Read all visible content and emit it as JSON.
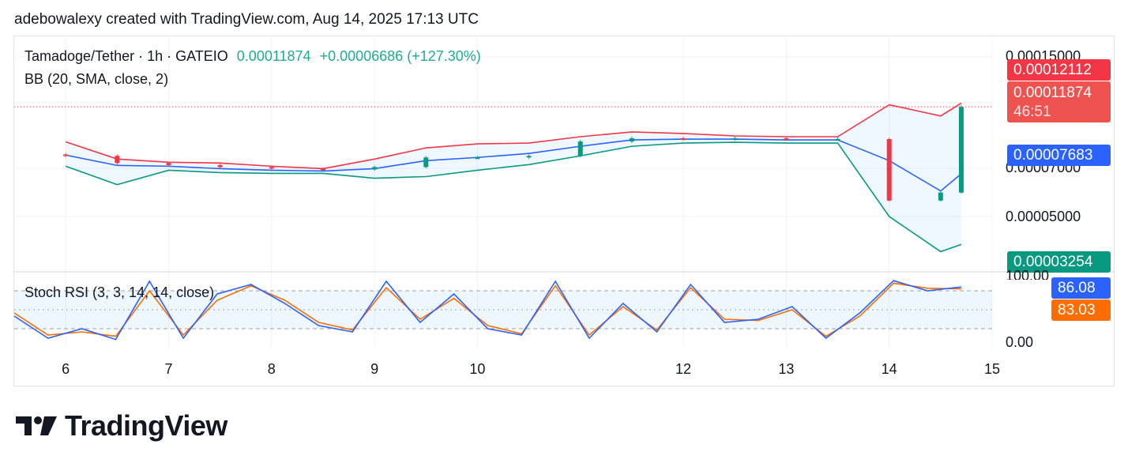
{
  "header": {
    "caption": "adebowalexy created with TradingView.com, Aug 14, 2025 17:13 UTC"
  },
  "legend": {
    "symbol": "Tamadoge/Tether · 1h · GATEIO",
    "last": "0.00011874",
    "change": "+0.00006686 (+127.30%)",
    "indicator": "BB (20, SMA, close, 2)",
    "stoch": "Stoch RSI (3, 3, 14, 14, close)"
  },
  "price_axis": {
    "ticks": [
      "0.00015000",
      "0.00007000",
      "0.00005000"
    ],
    "labels": [
      {
        "text": "0.00012112",
        "color": "#f23645"
      },
      {
        "text": "0.00011874",
        "sub": "46:51",
        "color": "#ef5350"
      },
      {
        "text": "0.00007683",
        "color": "#2962ff"
      },
      {
        "text": "0.00003254",
        "color": "#089981"
      }
    ]
  },
  "stoch_axis": {
    "ticks": [
      "100.00",
      "0.00"
    ],
    "labels": [
      {
        "text": "86.08",
        "color": "#2962ff"
      },
      {
        "text": "83.03",
        "color": "#ff6d00"
      }
    ]
  },
  "time_axis": {
    "ticks": [
      "6",
      "7",
      "8",
      "9",
      "10",
      "12",
      "13",
      "14",
      "15"
    ]
  },
  "chart_data": {
    "type": "line",
    "title": "Tamadoge/Tether · 1h · GATEIO",
    "x": [
      "6",
      "6.5",
      "7",
      "7.5",
      "8",
      "8.5",
      "9",
      "9.5",
      "10",
      "10.5",
      "11",
      "11.5",
      "12",
      "12.5",
      "13",
      "13.5",
      "14",
      "14.5",
      "14.7"
    ],
    "series": [
      {
        "name": "BB upper",
        "color": "#f23645",
        "values": [
          9.68e-05,
          8.6e-05,
          8.4e-05,
          8.35e-05,
          8.15e-05,
          8e-05,
          8.6e-05,
          9.3e-05,
          9.55e-05,
          9.6e-05,
          0.0001,
          0.000103,
          0.000102,
          0.0001005,
          0.0001,
          0.0001,
          0.00012,
          0.000113,
          0.000121
        ]
      },
      {
        "name": "BB basis",
        "color": "#2962ff",
        "values": [
          8.85e-05,
          8.2e-05,
          8.15e-05,
          8e-05,
          7.9e-05,
          7.85e-05,
          8e-05,
          8.5e-05,
          8.7e-05,
          8.95e-05,
          9.4e-05,
          9.8e-05,
          9.85e-05,
          9.85e-05,
          9.8e-05,
          9.8e-05,
          8.5e-05,
          6.6e-05,
          7.68e-05
        ]
      },
      {
        "name": "BB lower",
        "color": "#089981",
        "values": [
          8.15e-05,
          7e-05,
          7.9e-05,
          7.75e-05,
          7.7e-05,
          7.7e-05,
          7.4e-05,
          7.5e-05,
          7.9e-05,
          8.25e-05,
          8.8e-05,
          9.4e-05,
          9.6e-05,
          9.65e-05,
          9.6e-05,
          9.6e-05,
          5e-05,
          2.8e-05,
          3.25e-05
        ]
      }
    ],
    "candles_close": [
      8.8e-05,
      8.35e-05,
      8.22e-05,
      8.1e-05,
      8e-05,
      7.95e-05,
      8.1e-05,
      8.7e-05,
      8.7e-05,
      8.8e-05,
      9.7e-05,
      9.9e-05,
      9.85e-05,
      9.9e-05,
      9.85e-05,
      9.85e-05,
      6e-05,
      6.5e-05,
      0.0001187
    ],
    "stoch_rsi": {
      "k": [
        40,
        5,
        20,
        3,
        95,
        5,
        75,
        90,
        60,
        25,
        15,
        95,
        30,
        75,
        20,
        10,
        95,
        5,
        60,
        15,
        90,
        30,
        35,
        55,
        5,
        45,
        96,
        80,
        86
      ],
      "d": [
        45,
        10,
        15,
        8,
        80,
        10,
        65,
        88,
        65,
        30,
        18,
        85,
        35,
        68,
        25,
        12,
        88,
        10,
        55,
        18,
        85,
        35,
        33,
        50,
        8,
        40,
        92,
        84,
        83
      ]
    },
    "ylabel": "",
    "xlabel": "",
    "ylim": [
      3e-05,
      0.00015
    ],
    "legend_position": "top-left",
    "grid": true
  },
  "branding": {
    "logo_text": "TradingView"
  }
}
